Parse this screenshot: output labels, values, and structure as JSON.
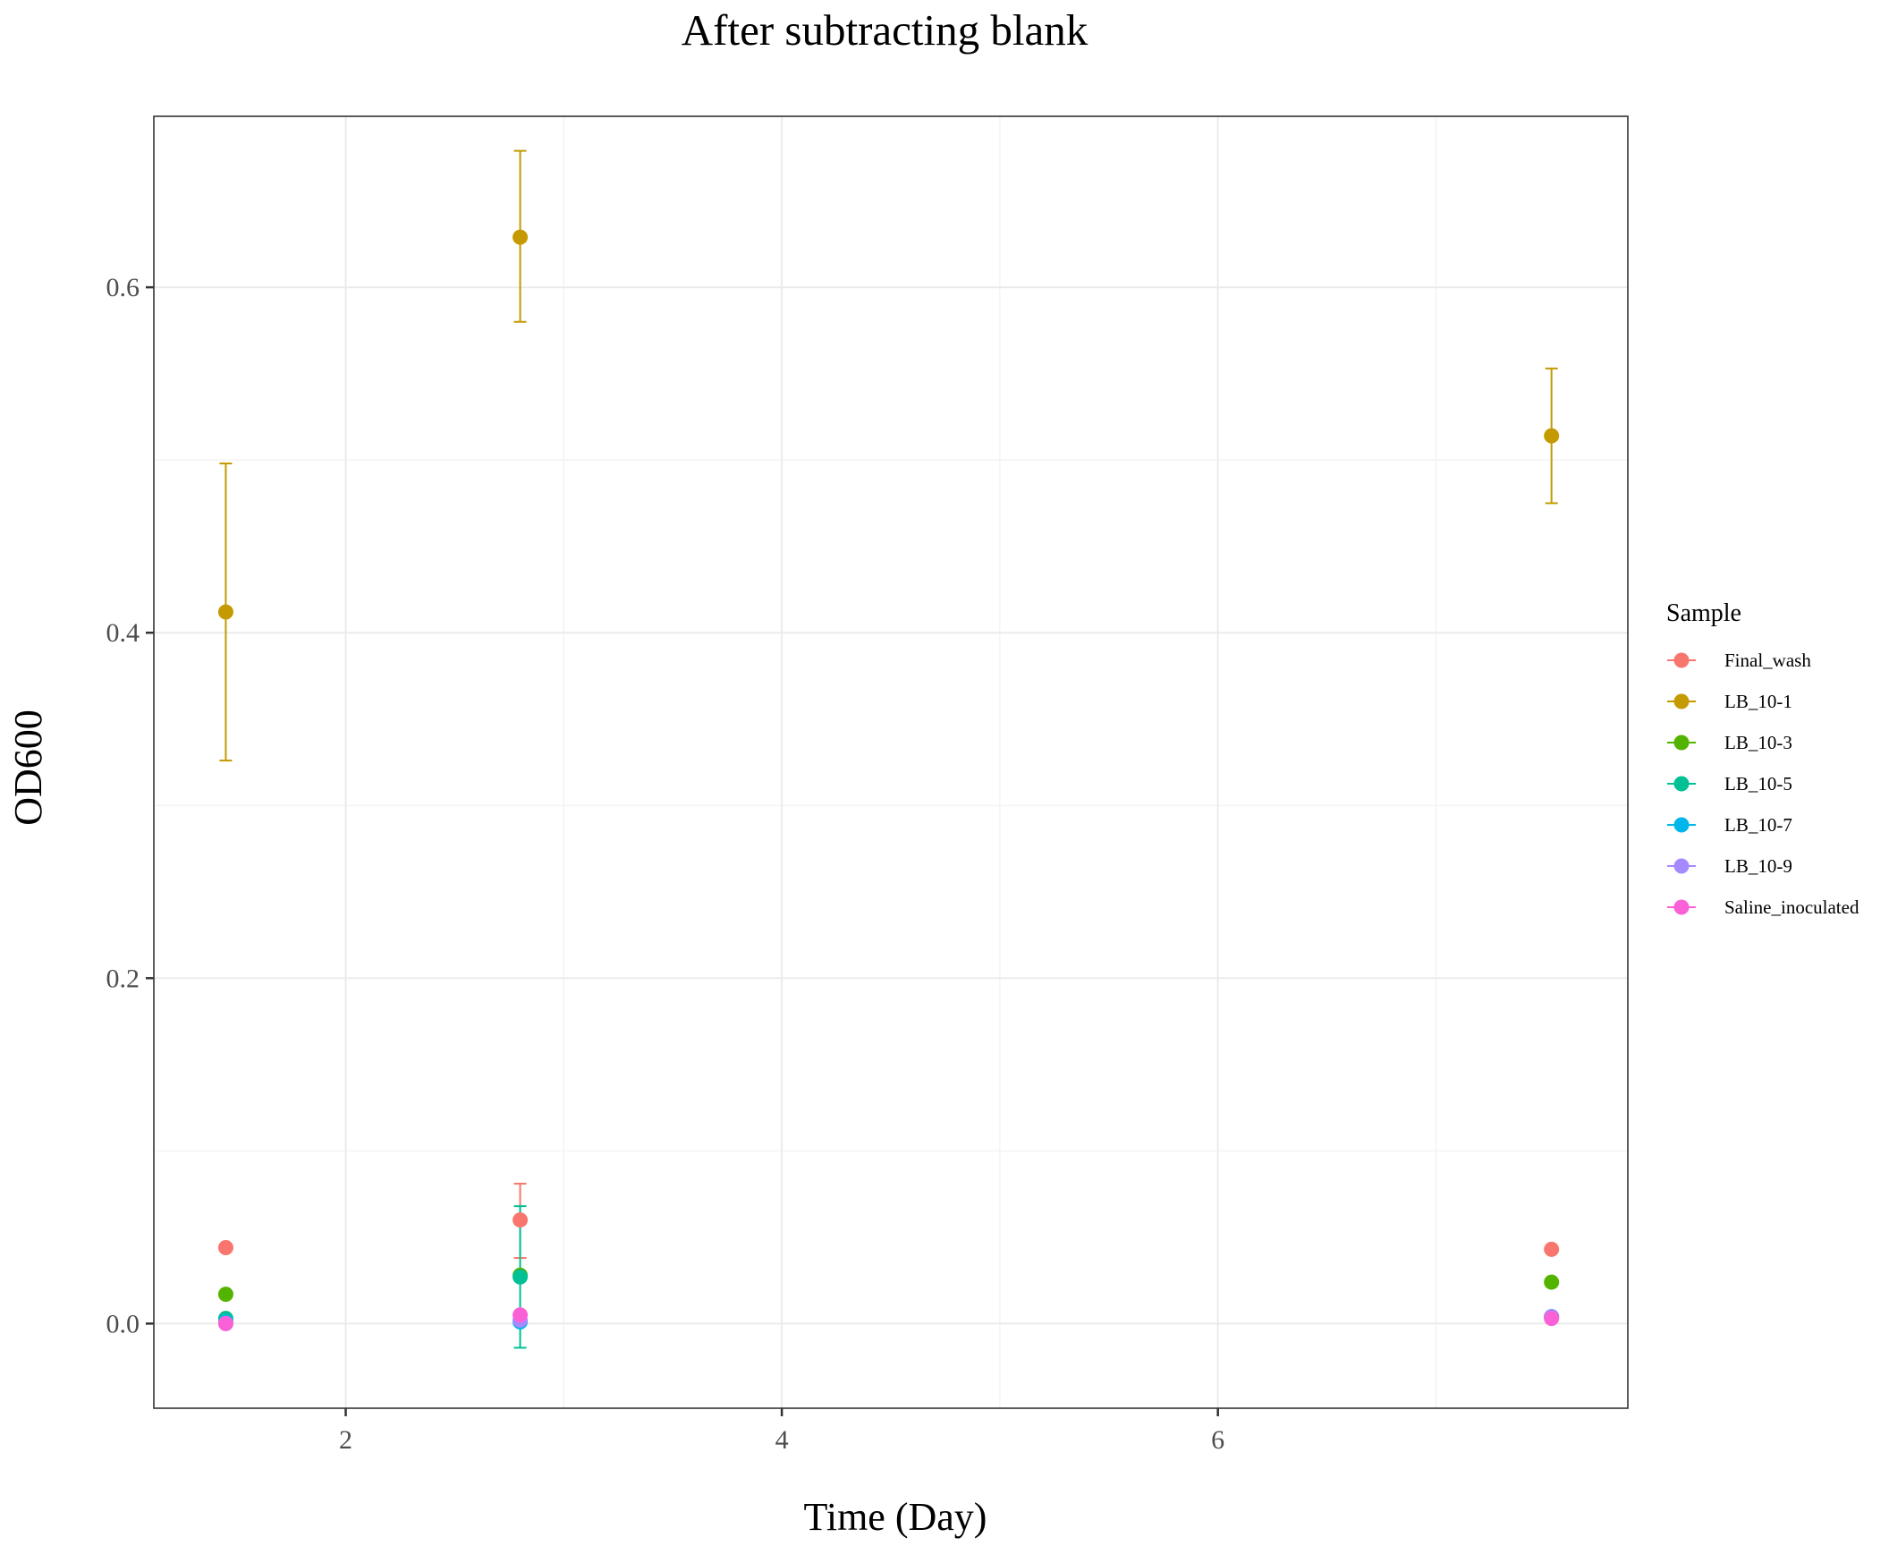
{
  "chart_data": {
    "type": "scatter",
    "title": "After subtracting blank",
    "xlabel": "Time (Day)",
    "ylabel": "OD600",
    "xlim": [
      1.12,
      7.88
    ],
    "ylim": [
      -0.049,
      0.699
    ],
    "x_ticks": [
      2,
      4,
      6
    ],
    "x_tick_labels": [
      "2",
      "4",
      "6"
    ],
    "y_ticks": [
      0.0,
      0.2,
      0.4,
      0.6
    ],
    "y_tick_labels": [
      "0.0",
      "0.2",
      "0.4",
      "0.6"
    ],
    "grid": true,
    "error_bars": true,
    "legend": {
      "title": "Sample",
      "position": "right"
    },
    "series": [
      {
        "name": "Final_wash",
        "color": "#F8766D",
        "points": [
          {
            "x": 1.45,
            "y": 0.044
          },
          {
            "x": 2.8,
            "y": 0.06,
            "ymin": 0.038,
            "ymax": 0.081
          },
          {
            "x": 7.53,
            "y": 0.043
          }
        ]
      },
      {
        "name": "LB_10-1",
        "color": "#C49A00",
        "points": [
          {
            "x": 1.45,
            "y": 0.412,
            "ymin": 0.326,
            "ymax": 0.498
          },
          {
            "x": 2.8,
            "y": 0.629,
            "ymin": 0.58,
            "ymax": 0.679
          },
          {
            "x": 7.53,
            "y": 0.514,
            "ymin": 0.475,
            "ymax": 0.553
          }
        ]
      },
      {
        "name": "LB_10-3",
        "color": "#53B400",
        "points": [
          {
            "x": 1.45,
            "y": 0.017
          },
          {
            "x": 2.8,
            "y": 0.028
          },
          {
            "x": 7.53,
            "y": 0.024
          }
        ]
      },
      {
        "name": "LB_10-5",
        "color": "#00C094",
        "points": [
          {
            "x": 1.45,
            "y": 0.003
          },
          {
            "x": 2.8,
            "y": 0.027,
            "ymin": -0.014,
            "ymax": 0.068
          },
          {
            "x": 7.53,
            "y": 0.004
          }
        ]
      },
      {
        "name": "LB_10-7",
        "color": "#00B6EB",
        "points": [
          {
            "x": 1.45,
            "y": 0.001
          },
          {
            "x": 2.8,
            "y": 0.001
          },
          {
            "x": 7.53,
            "y": 0.004
          }
        ]
      },
      {
        "name": "LB_10-9",
        "color": "#A58AFF",
        "points": [
          {
            "x": 1.45,
            "y": 0.0
          },
          {
            "x": 2.8,
            "y": 0.002
          },
          {
            "x": 7.53,
            "y": 0.004
          }
        ]
      },
      {
        "name": "Saline_inoculated",
        "color": "#FB61D7",
        "points": [
          {
            "x": 1.45,
            "y": 0.0
          },
          {
            "x": 2.8,
            "y": 0.005
          },
          {
            "x": 7.53,
            "y": 0.003
          }
        ]
      }
    ]
  }
}
